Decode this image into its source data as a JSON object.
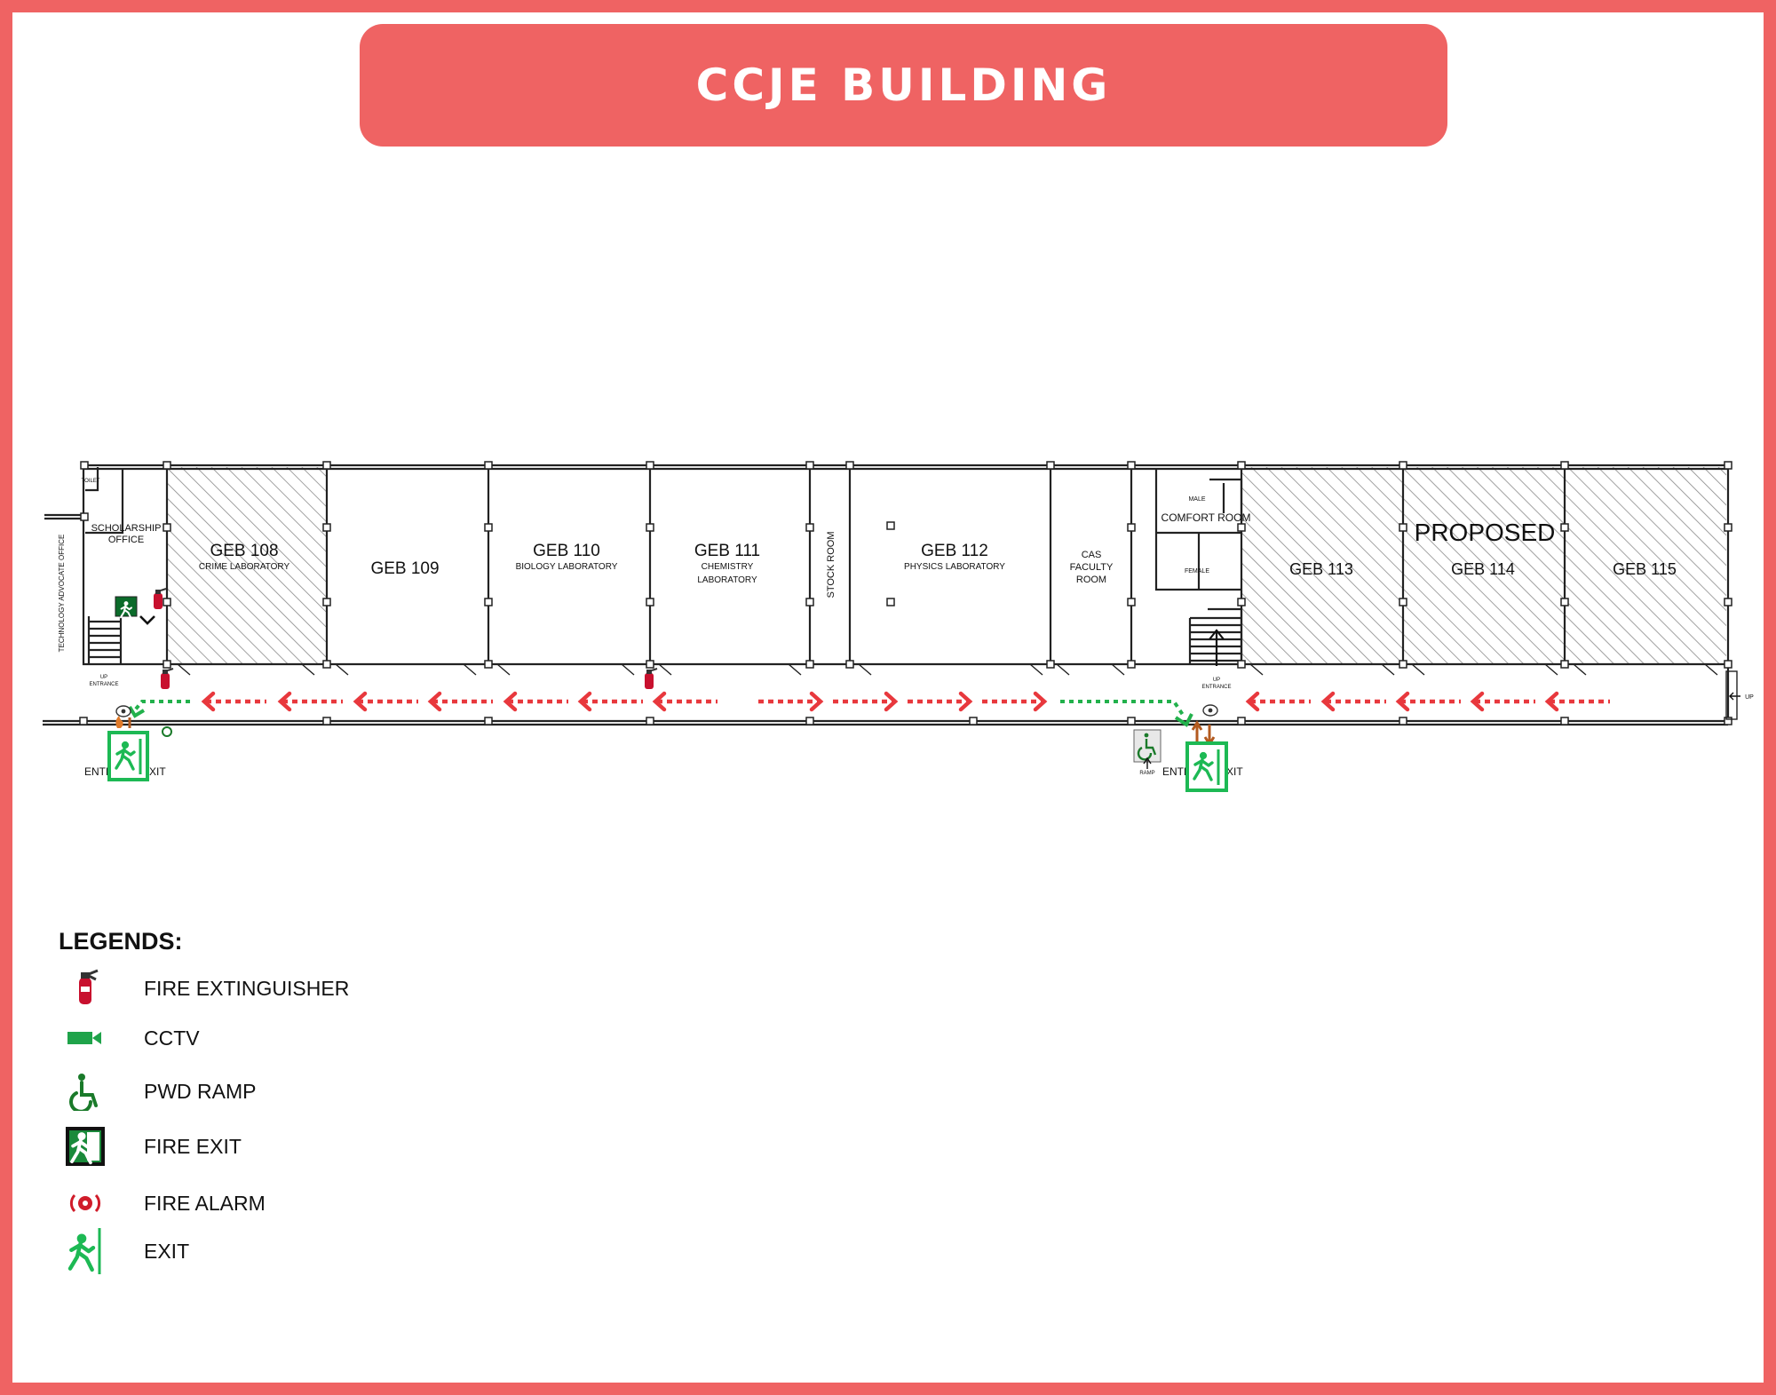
{
  "title": "CCJE BUILDING",
  "colors": {
    "frame": "#ef6363",
    "evacuation_arrow": "#e8383d",
    "exit_route": "#22b14c",
    "exit_sign": "#1db954",
    "hatch": "#8a8a8a",
    "extinguisher": "#c8102e"
  },
  "rooms": {
    "toilet": "TOILET",
    "technology_advocate": "TECHNOLOGY ADVOCATE OFFICE",
    "scholarship_1": "SCHOLARSHIP",
    "scholarship_2": "OFFICE",
    "geb108": "GEB 108",
    "geb108_sub": "CRIME LABORATORY",
    "geb109": "GEB 109",
    "geb110": "GEB 110",
    "geb110_sub": "BIOLOGY LABORATORY",
    "geb111": "GEB 111",
    "geb111_sub1": "CHEMISTRY",
    "geb111_sub2": "LABORATORY",
    "stock_room": "STOCK ROOM",
    "geb112": "GEB 112",
    "geb112_sub": "PHYSICS LABORATORY",
    "cas_1": "CAS",
    "cas_2": "FACULTY",
    "cas_3": "ROOM",
    "comfort_room": "COMFORT ROOM",
    "male": "MALE",
    "female": "FEMALE",
    "proposed": "PROPOSED",
    "geb113": "GEB 113",
    "geb114": "GEB 114",
    "geb115": "GEB 115"
  },
  "markers": {
    "up_entrance_left_1": "UP",
    "up_entrance_left_2": "ENTRANCE",
    "up_entrance_right_1": "UP",
    "up_entrance_right_2": "ENTRANCE",
    "up_right": "UP",
    "ramp": "RAMP",
    "entr_left": "ENTR",
    "exit_left": "XIT",
    "entr_right": "ENTR",
    "exit_right": "XIT"
  },
  "legend": {
    "title": "LEGENDS:",
    "items": [
      {
        "label": "FIRE EXTINGUISHER",
        "icon": "fire-extinguisher-icon"
      },
      {
        "label": "CCTV",
        "icon": "cctv-icon"
      },
      {
        "label": "PWD RAMP",
        "icon": "wheelchair-icon"
      },
      {
        "label": "FIRE EXIT",
        "icon": "fire-exit-icon"
      },
      {
        "label": "FIRE ALARM",
        "icon": "fire-alarm-icon"
      },
      {
        "label": "EXIT",
        "icon": "exit-running-man-icon"
      }
    ]
  }
}
